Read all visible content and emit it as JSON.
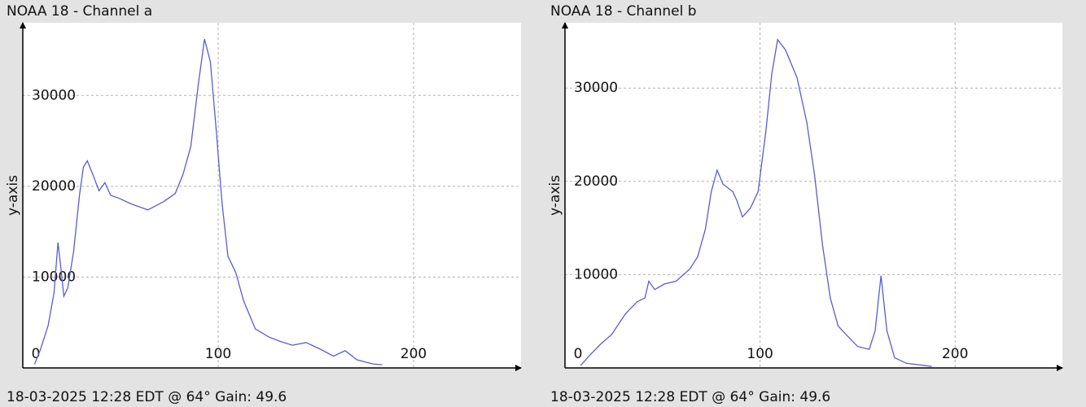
{
  "chart_data": [
    {
      "type": "line",
      "title": "NOAA 18 - Channel a",
      "footer": "18-03-2025 12:28 EDT @ 64° Gain: 49.6",
      "ylabel": "y-axis",
      "x": [
        6,
        9,
        13,
        16,
        18,
        19.5,
        21,
        23,
        26,
        29,
        31,
        33,
        35.5,
        39,
        42,
        45,
        49,
        55,
        64,
        72,
        78,
        82,
        86,
        90,
        93,
        96,
        99,
        102,
        105,
        109,
        113,
        119,
        126,
        132,
        138,
        145,
        152,
        159,
        165,
        171,
        179,
        184
      ],
      "values": [
        400,
        2000,
        4700,
        8300,
        13800,
        11000,
        7900,
        8800,
        12800,
        19000,
        22100,
        22800,
        21500,
        19500,
        20400,
        19000,
        18700,
        18100,
        17400,
        18300,
        19200,
        21300,
        24400,
        31500,
        36200,
        33700,
        26200,
        18100,
        12300,
        10500,
        7400,
        4300,
        3400,
        2900,
        2500,
        2800,
        2100,
        1300,
        1900,
        900,
        450,
        350
      ],
      "color": "#5b5bd6",
      "xlim": [
        0,
        255
      ],
      "xticks": [
        0,
        100,
        200
      ],
      "ylim": [
        0,
        38000
      ],
      "yticks": [
        10000,
        20000,
        30000
      ],
      "grid": true
    },
    {
      "type": "line",
      "title": "NOAA 18 - Channel b",
      "footer": "18-03-2025 12:28 EDT @ 64° Gain: 49.6",
      "ylabel": "y-axis",
      "x": [
        8,
        12,
        18,
        24,
        31,
        37,
        41,
        43,
        46,
        51,
        57,
        64,
        68,
        72,
        75,
        78,
        81,
        86,
        88,
        91,
        95,
        99,
        103,
        106,
        109,
        113,
        119,
        124,
        128,
        132,
        136,
        140,
        144,
        150,
        156,
        159,
        162,
        165,
        169,
        175,
        188
      ],
      "values": [
        260,
        1200,
        2500,
        3600,
        5800,
        7100,
        7500,
        9300,
        8400,
        9000,
        9300,
        10600,
        11900,
        14900,
        18900,
        21200,
        19700,
        18900,
        18000,
        16200,
        17100,
        18900,
        25400,
        31500,
        35200,
        34100,
        31100,
        26300,
        20600,
        13200,
        7500,
        4500,
        3600,
        2300,
        2000,
        4000,
        9900,
        4000,
        1100,
        500,
        170
      ],
      "color": "#5b5bd6",
      "xlim": [
        0,
        255
      ],
      "xticks": [
        0,
        100,
        200
      ],
      "ylim": [
        0,
        37000
      ],
      "yticks": [
        10000,
        20000,
        30000
      ],
      "grid": true
    }
  ]
}
